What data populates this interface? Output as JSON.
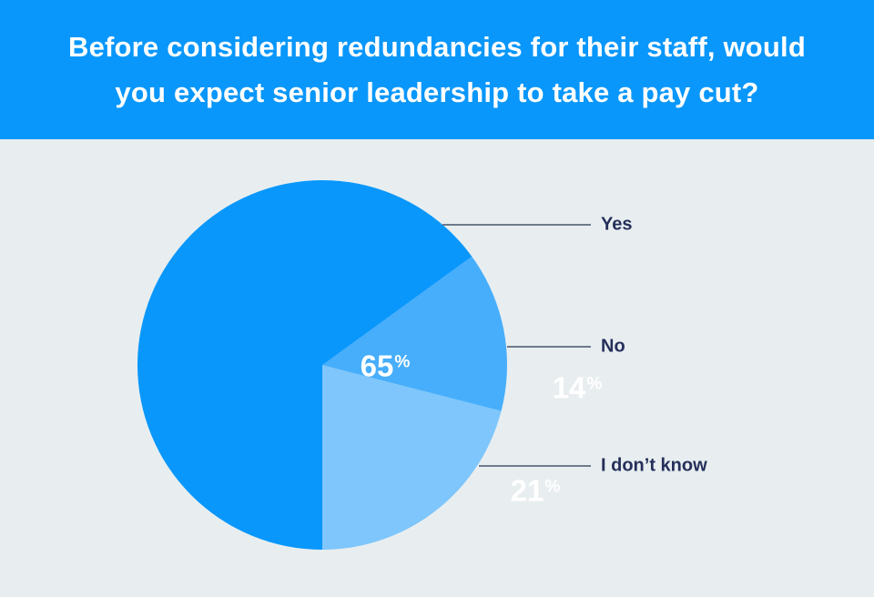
{
  "header": {
    "title": "Before considering redundancies for their staff, would you expect senior leadership to take a pay cut?"
  },
  "chart_data": {
    "type": "pie",
    "title": "Before considering redundancies for their staff, would you expect senior leadership to take a pay cut?",
    "start_angle": "bottom",
    "direction": "clockwise",
    "legend_position": "right",
    "slices": [
      {
        "label": "Yes",
        "value": 65,
        "unit": "%",
        "color": "#0997fb"
      },
      {
        "label": "No",
        "value": 14,
        "unit": "%",
        "color": "#47aefb"
      },
      {
        "label": "I don’t know",
        "value": 21,
        "unit": "%",
        "color": "#7ec6fb"
      }
    ]
  },
  "colors": {
    "banner_background": "#0997fb",
    "banner_text": "#ffffff",
    "page_background": "#e8eef0",
    "label_text": "#252f5a",
    "leader_line": "#6e7a8a",
    "slice_value_text": "#ffffff"
  }
}
